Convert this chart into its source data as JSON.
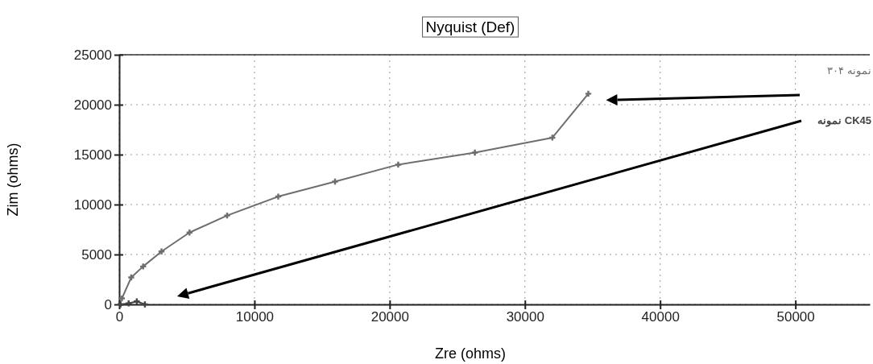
{
  "chart_data": {
    "type": "line",
    "title": "Nyquist (Def)",
    "xlabel": "Zre (ohms)",
    "ylabel": "Zim (ohms)",
    "xlim": [
      0,
      55500
    ],
    "xticks": [
      0,
      10000,
      20000,
      30000,
      40000,
      50000
    ],
    "ylim": [
      0,
      25000
    ],
    "yticks": [
      0,
      5000,
      10000,
      15000,
      20000,
      25000
    ],
    "grid": true,
    "marker": "cross",
    "line_style": "solid",
    "series": [
      {
        "name": "نمونه ۳۰۴",
        "color": "#6e6e6e",
        "x": [
          200,
          890,
          1770,
          3130,
          5200,
          7980,
          11760,
          15960,
          20630,
          26300,
          32030,
          34690
        ],
        "values": [
          600,
          2700,
          3800,
          5300,
          7200,
          8900,
          10800,
          12300,
          14000,
          15200,
          16700,
          21100
        ]
      },
      {
        "name": "نمونه CK45",
        "color": "#444444",
        "x": [
          100,
          700,
          1300,
          1900
        ],
        "values": [
          0,
          100,
          300,
          0
        ]
      }
    ]
  }
}
